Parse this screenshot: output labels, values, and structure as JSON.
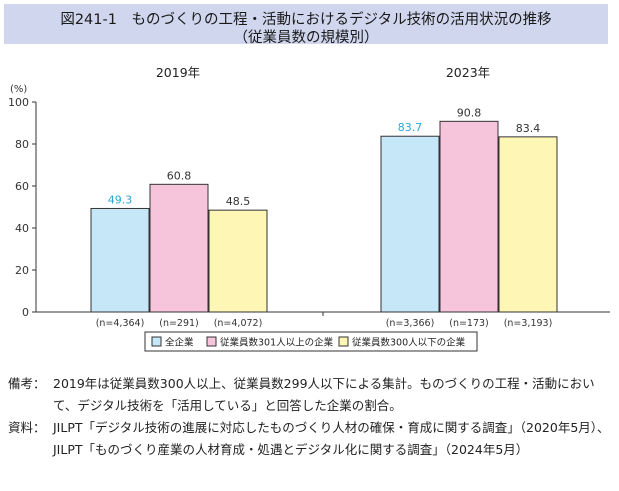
{
  "title": {
    "line1": "図241-1　ものづくりの工程・活動におけるデジタル技術の活用状況の推移",
    "line2": "（従業員数の規模別）"
  },
  "notes": [
    {
      "label": "備考：",
      "text": "2019年は従業員数300人以上、従業員数299人以下による集計。ものづくりの工程・活動において、デジタル技術を「活用している」と回答した企業の割合。"
    },
    {
      "label": "資料：",
      "text": "JILPT「デジタル技術の進展に対応したものづくり人材の確保・育成に関する調査」（2020年5月）、JILPT「ものづくり産業の人材育成・処遇とデジタル化に関する調査」（2024年5月）"
    }
  ],
  "chart_data": {
    "type": "bar",
    "unit_label": "(%)",
    "ylim": [
      0,
      100
    ],
    "yticks": [
      0,
      20,
      40,
      60,
      80,
      100
    ],
    "grid": false,
    "legend_position": "bottom",
    "groups": [
      {
        "label": "2019年",
        "values": [
          49.3,
          60.8,
          48.5
        ],
        "n_labels": [
          "(n=4,364)",
          "(n=291)",
          "(n=4,072)"
        ]
      },
      {
        "label": "2023年",
        "values": [
          83.7,
          90.8,
          83.4
        ],
        "n_labels": [
          "(n=3,366)",
          "(n=173)",
          "(n=3,193)"
        ]
      }
    ],
    "series": [
      {
        "name": "全企業",
        "color": "#c6e7f7",
        "label_color": "#29a6d6"
      },
      {
        "name": "従業員数301人以上の企業",
        "color": "#f6c5dc",
        "label_color": "#333333"
      },
      {
        "name": "従業員数300人以下の企業",
        "color": "#fdf6b5",
        "label_color": "#333333"
      }
    ]
  }
}
